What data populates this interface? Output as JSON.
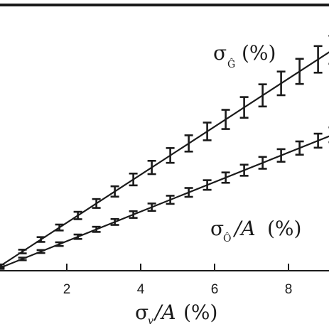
{
  "chart_data": {
    "type": "line",
    "xlabel": "σᵥ/A (%)",
    "x_ticks": [
      2,
      4,
      6,
      8
    ],
    "xlim": [
      0,
      9.2
    ],
    "ylim": [
      -0.5,
      12.5
    ],
    "grid": false,
    "series": [
      {
        "name": "σĜ (%)",
        "fit_slope": 1.3,
        "x": [
          0.2,
          0.8,
          1.3,
          1.8,
          2.3,
          2.8,
          3.3,
          3.8,
          4.3,
          4.8,
          5.3,
          5.8,
          6.3,
          6.8,
          7.3,
          7.8,
          8.3,
          8.8,
          9.2
        ],
        "y": [
          0.26,
          1.04,
          1.69,
          2.34,
          2.99,
          3.64,
          4.29,
          4.94,
          5.59,
          6.24,
          6.89,
          7.54,
          8.19,
          8.84,
          9.49,
          10.14,
          10.79,
          11.44,
          11.96
        ],
        "err": [
          0.08,
          0.1,
          0.13,
          0.16,
          0.2,
          0.24,
          0.28,
          0.32,
          0.36,
          0.4,
          0.44,
          0.48,
          0.52,
          0.56,
          0.6,
          0.64,
          0.68,
          0.72,
          0.76
        ]
      },
      {
        "name": "σô/A (%)",
        "fit_slope": 0.8,
        "x": [
          0.2,
          0.8,
          1.3,
          1.8,
          2.3,
          2.8,
          3.3,
          3.8,
          4.3,
          4.8,
          5.3,
          5.8,
          6.3,
          6.8,
          7.3,
          7.8,
          8.3,
          8.8,
          9.2
        ],
        "y": [
          0.16,
          0.64,
          1.04,
          1.44,
          1.84,
          2.24,
          2.64,
          3.04,
          3.44,
          3.84,
          4.24,
          4.64,
          5.04,
          5.44,
          5.84,
          6.24,
          6.64,
          7.04,
          7.36
        ],
        "err": [
          0.06,
          0.07,
          0.08,
          0.1,
          0.12,
          0.14,
          0.16,
          0.18,
          0.2,
          0.22,
          0.24,
          0.26,
          0.28,
          0.3,
          0.32,
          0.34,
          0.36,
          0.38,
          0.4
        ]
      }
    ],
    "annotations": {
      "series1": {
        "sigma": "σ",
        "sub": "Ĝ",
        "unit": "(%)"
      },
      "series2": {
        "sigma": "σ",
        "sub": "Ô",
        "rest": "/A",
        "unit": "(%)"
      },
      "xaxis": {
        "sigma": "σ",
        "sub": "v",
        "rest": "/A",
        "unit": "(%)"
      }
    }
  }
}
